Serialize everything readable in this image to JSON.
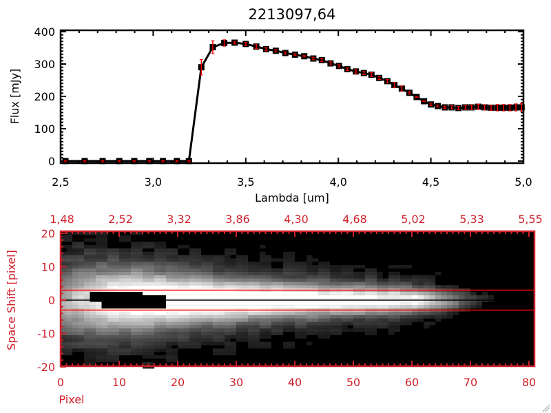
{
  "chart_data": [
    {
      "type": "line",
      "title": "2213097,64",
      "xlabel": "Lambda [um]",
      "ylabel": "Flux [mJy]",
      "xlim": [
        2.5,
        5.0
      ],
      "ylim": [
        0,
        400
      ],
      "x_ticks": [
        2.5,
        3.0,
        3.5,
        4.0,
        4.5,
        5.0
      ],
      "x_tick_labels": [
        "2,5",
        "3,0",
        "3,5",
        "4,0",
        "4,5",
        "5,0"
      ],
      "y_ticks": [
        0,
        100,
        200,
        300,
        400
      ],
      "y_tick_labels": [
        "0",
        "100",
        "200",
        "300",
        "400"
      ],
      "line_color": "#000000",
      "errorbar_color": "#ff0000",
      "points": [
        [
          2.526,
          0,
          2
        ],
        [
          2.63,
          0,
          2
        ],
        [
          2.727,
          0,
          2
        ],
        [
          2.817,
          0,
          2
        ],
        [
          2.898,
          0,
          2
        ],
        [
          2.979,
          0,
          2
        ],
        [
          3.053,
          0,
          2
        ],
        [
          3.128,
          0,
          2
        ],
        [
          3.193,
          0,
          2
        ],
        [
          3.26,
          290,
          24
        ],
        [
          3.322,
          352,
          20
        ],
        [
          3.384,
          365,
          10
        ],
        [
          3.44,
          366,
          4
        ],
        [
          3.5,
          362,
          5
        ],
        [
          3.557,
          354,
          6
        ],
        [
          3.61,
          346,
          5
        ],
        [
          3.662,
          341,
          4
        ],
        [
          3.714,
          334,
          4
        ],
        [
          3.766,
          329,
          3
        ],
        [
          3.816,
          324,
          2
        ],
        [
          3.865,
          317,
          4
        ],
        [
          3.911,
          312,
          5
        ],
        [
          3.958,
          302,
          5
        ],
        [
          4.004,
          294,
          4
        ],
        [
          4.049,
          284,
          4
        ],
        [
          4.095,
          277,
          6
        ],
        [
          4.138,
          272,
          5
        ],
        [
          4.179,
          267,
          6
        ],
        [
          4.221,
          257,
          5
        ],
        [
          4.265,
          247,
          5
        ],
        [
          4.303,
          235,
          8
        ],
        [
          4.343,
          224,
          8
        ],
        [
          4.384,
          211,
          4
        ],
        [
          4.423,
          198,
          1
        ],
        [
          4.463,
          185,
          1
        ],
        [
          4.5,
          175,
          4
        ],
        [
          4.537,
          170,
          3
        ],
        [
          4.575,
          166,
          4
        ],
        [
          4.612,
          166,
          5
        ],
        [
          4.649,
          164,
          5
        ],
        [
          4.686,
          166,
          6
        ],
        [
          4.72,
          166,
          7
        ],
        [
          4.756,
          168,
          8
        ],
        [
          4.79,
          166,
          8
        ],
        [
          4.825,
          165,
          8
        ],
        [
          4.86,
          165,
          10
        ],
        [
          4.893,
          165,
          10
        ],
        [
          4.927,
          165,
          10
        ],
        [
          4.959,
          166,
          11
        ],
        [
          4.99,
          166,
          12
        ]
      ]
    },
    {
      "type": "heatmap",
      "xlabel": "Pixel",
      "ylabel": "Space Shift [pixel]",
      "xlim": [
        0,
        81
      ],
      "ylim": [
        -20,
        21
      ],
      "x_ticks": [
        0,
        10,
        20,
        30,
        40,
        50,
        60,
        70,
        80
      ],
      "x_tick_labels": [
        "0",
        "10",
        "20",
        "30",
        "40",
        "50",
        "60",
        "70",
        "80"
      ],
      "top_tick_labels": [
        "1,48",
        "2,52",
        "3,32",
        "3,86",
        "4,30",
        "4,68",
        "5,02",
        "5,33",
        "5,55"
      ],
      "y_ticks": [
        -20,
        -10,
        0,
        10,
        20
      ],
      "y_tick_labels": [
        "-20",
        "-10",
        "0",
        "10",
        "20"
      ],
      "aperture_lines": [
        3,
        -3
      ],
      "center_line": 0,
      "axis_color": "#d0202a",
      "aperture_color": "#ff0000",
      "colormap": "grayscale",
      "saturated_region": {
        "x": [
          5,
          18
        ],
        "y": [
          -2,
          2
        ]
      },
      "column_peak_amplitude": [
        0.55,
        0.7,
        0.85,
        0.95,
        1.0,
        1.0,
        1.0,
        0.98,
        0.95,
        0.92,
        0.9,
        0.88,
        0.86,
        0.84,
        0.82,
        0.8,
        0.78,
        0.76,
        0.74,
        0.72,
        0.7
      ],
      "column_width_sigma": [
        7,
        7,
        6.5,
        6,
        5.5,
        5,
        4.6,
        4.3,
        4.0,
        3.8,
        3.6,
        3.4,
        3.2,
        3.0,
        2.8,
        2.6,
        2.4,
        2.2,
        2.0,
        1.8,
        1.6
      ]
    }
  ]
}
